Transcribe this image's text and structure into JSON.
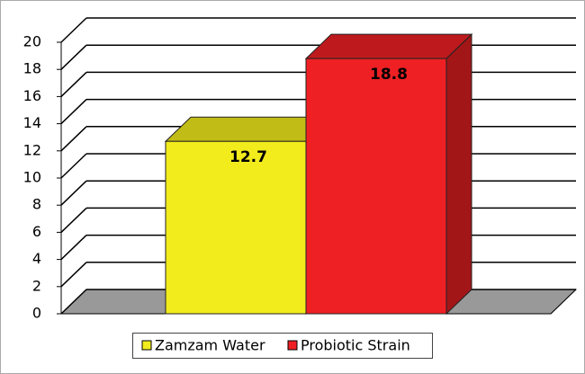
{
  "chart_data": {
    "type": "bar3d",
    "categories": [
      null
    ],
    "series": [
      {
        "name": "Zamzam Water",
        "color": "#f2ec1c",
        "values": [
          12.7
        ]
      },
      {
        "name": "Probiotic Strain",
        "color": "#ee2024",
        "values": [
          18.8
        ]
      }
    ],
    "ylim": [
      0,
      20
    ],
    "yticks": [
      0,
      2,
      4,
      6,
      8,
      10,
      12,
      14,
      16,
      18,
      20
    ],
    "grid": true,
    "legend": "bottom"
  }
}
